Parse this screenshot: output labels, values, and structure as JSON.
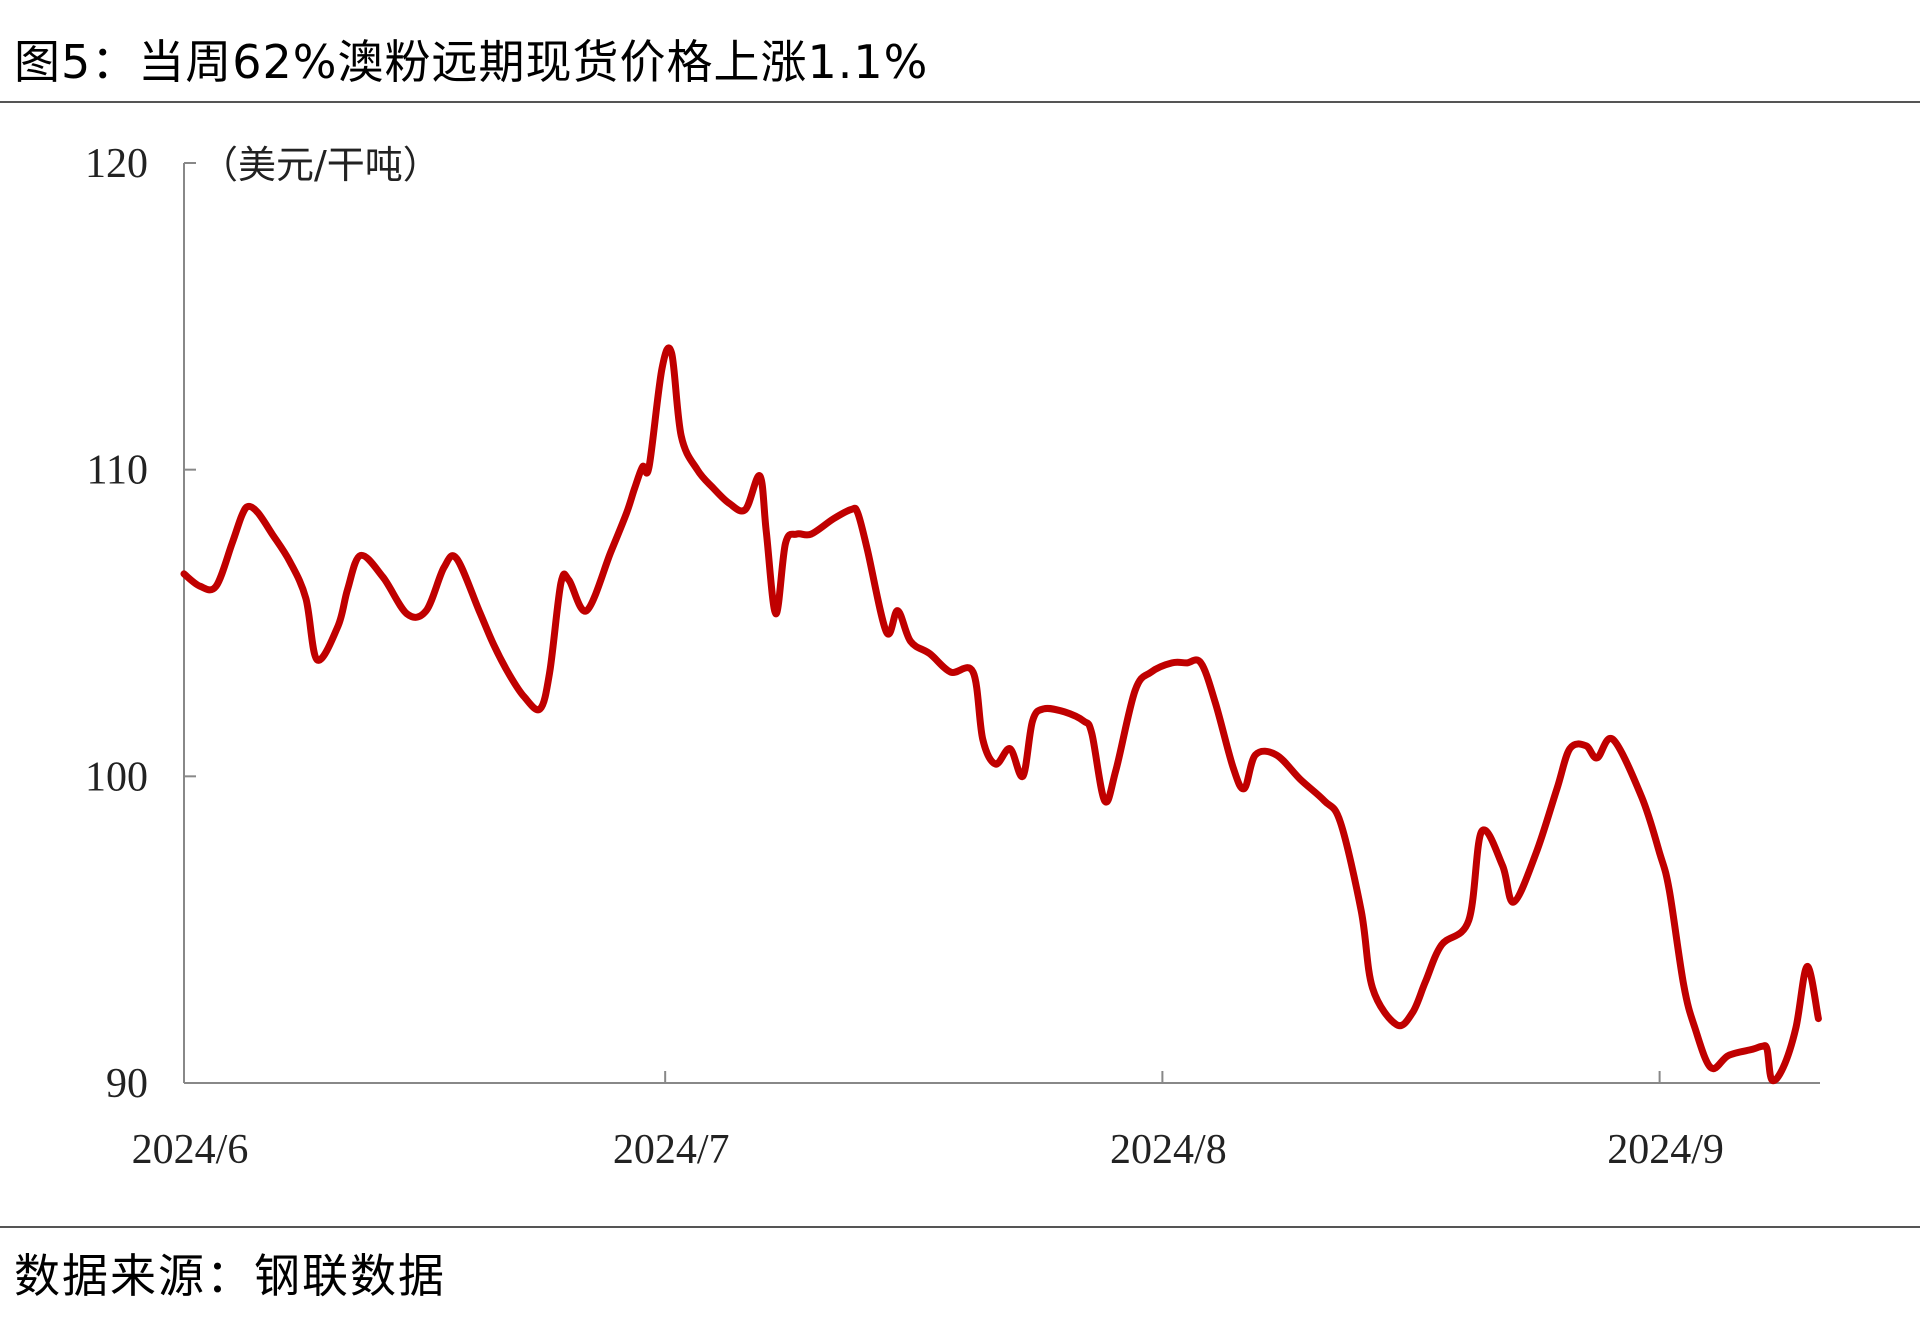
{
  "title": "图5：当周62%澳粉远期现货价格上涨1.1%",
  "source": "数据来源：钢联数据",
  "chart_data": {
    "type": "line",
    "unit_label": "（美元/干吨）",
    "ylim": [
      90,
      120
    ],
    "yticks": [
      "90",
      "100",
      "110",
      "120"
    ],
    "xticks": [
      {
        "label": "2024/6",
        "x": 0
      },
      {
        "label": "2024/7",
        "x": 30
      },
      {
        "label": "2024/8",
        "x": 61
      },
      {
        "label": "2024/9",
        "x": 92
      }
    ],
    "xlim": [
      0,
      102
    ],
    "line_color": "#c00000",
    "series": [
      {
        "name": "",
        "x": [
          0,
          1,
          2,
          3,
          3.6,
          4,
          4.6,
          5.5,
          6.6,
          7.6,
          8.3,
          9.6,
          10.2,
          11,
          12.4,
          13.9,
          15.1,
          16.2,
          17,
          18.4,
          19.3,
          20.3,
          21.2,
          22.2,
          22.8,
          23.5,
          24,
          25.1,
          26.6,
          27.6,
          28.1,
          28.6,
          29,
          29.8,
          30.4,
          31,
          32,
          33,
          34,
          35,
          35.9,
          36.3,
          36.9,
          37.5,
          38.2,
          39.1,
          40.5,
          41.6,
          42,
          42.6,
          43.8,
          44.5,
          45.3,
          46.5,
          47.8,
          49.2,
          49.8,
          50.6,
          51.5,
          52.3,
          52.9,
          53.6,
          54.9,
          56.1,
          56.6,
          57.4,
          58.1,
          59.3,
          60.3,
          61.6,
          62.5,
          63.4,
          64.3,
          65.4,
          66.1,
          66.8,
          68.1,
          69.6,
          71.1,
          72.1,
          73.4,
          74.1,
          75.6,
          76.6,
          77.4,
          78.4,
          80.1,
          80.9,
          82.2,
          82.9,
          84.3,
          85.6,
          86.4,
          87.4,
          88.1,
          89.1,
          90.9,
          92,
          92.6,
          93.5,
          94.2,
          95.2,
          96.3,
          97.8,
          98.4,
          98.7,
          99,
          99.7,
          100.5,
          101.2,
          101.9
        ],
        "y": [
          106.6,
          106.2,
          106.2,
          107.6,
          108.5,
          108.8,
          108.6,
          107.9,
          107,
          105.8,
          103.8,
          104.9,
          106.1,
          107.2,
          106.5,
          105.3,
          105.4,
          106.8,
          107.1,
          105.4,
          104.3,
          103.3,
          102.6,
          102.2,
          103.4,
          106.3,
          106.4,
          105.4,
          107.3,
          108.6,
          109.4,
          110.1,
          110.1,
          113.3,
          113.8,
          111.1,
          110,
          109.4,
          108.9,
          108.7,
          109.8,
          108,
          105.3,
          107.6,
          107.9,
          107.9,
          108.4,
          108.7,
          108.6,
          107.4,
          104.7,
          105.4,
          104.4,
          104,
          103.4,
          103.4,
          101.2,
          100.4,
          100.9,
          100,
          101.8,
          102.2,
          102.1,
          101.8,
          101.4,
          99.2,
          100.2,
          102.8,
          103.4,
          103.7,
          103.7,
          103.7,
          102.4,
          100.3,
          99.6,
          100.7,
          100.7,
          99.9,
          99.2,
          98.5,
          95.6,
          93.1,
          91.9,
          92.3,
          93.3,
          94.5,
          95.3,
          98.2,
          97.1,
          95.9,
          97.5,
          99.6,
          100.9,
          101,
          100.6,
          101.2,
          99.3,
          97.5,
          96.3,
          93.2,
          91.8,
          90.5,
          90.9,
          91.1,
          91.2,
          91.1,
          90.1,
          90.5,
          91.8,
          93.8,
          92.1
        ]
      }
    ]
  }
}
